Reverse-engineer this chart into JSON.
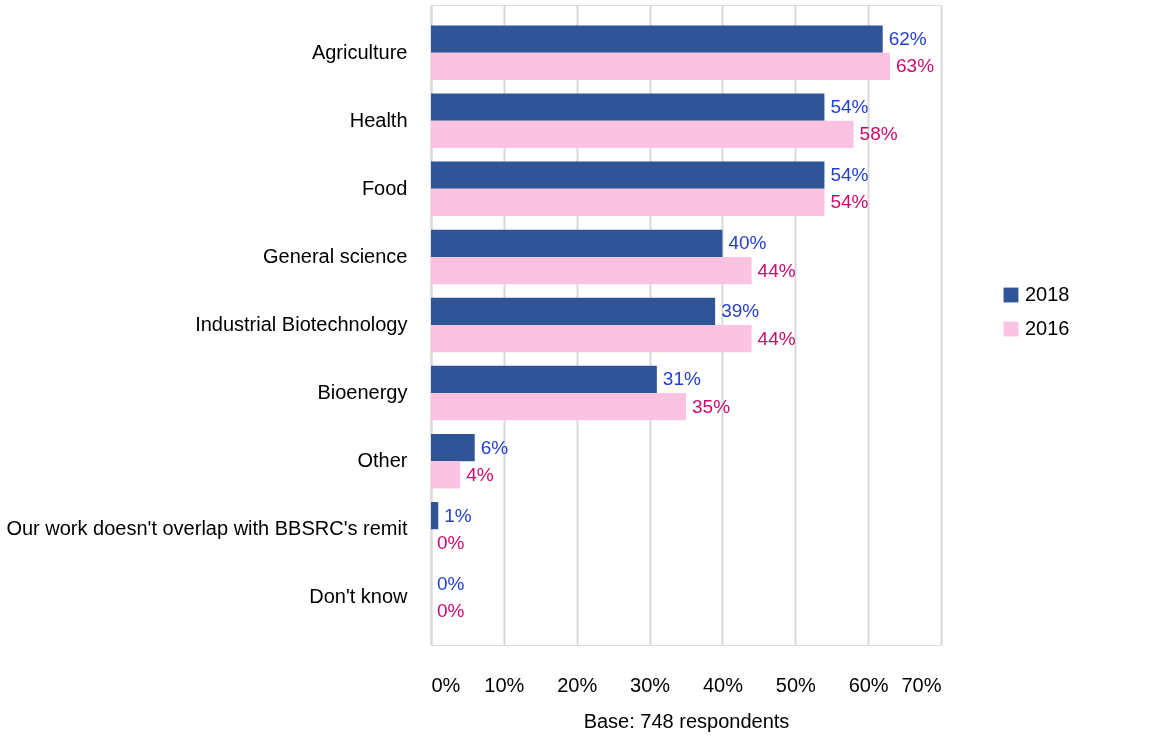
{
  "chart_data": {
    "type": "bar",
    "orientation": "horizontal",
    "xlabel": "Base: 748 respondents",
    "categories": [
      "Agriculture",
      "Health",
      "Food",
      "General science",
      "Industrial Biotechnology",
      "Bioenergy",
      "Other",
      "Our work doesn't overlap with BBSRC's remit",
      "Don't know"
    ],
    "series": [
      {
        "name": "2018",
        "color": "#2f5597",
        "values": [
          62,
          54,
          54,
          40,
          39,
          31,
          6,
          1,
          0
        ],
        "value_labels": [
          "62%",
          "54%",
          "54%",
          "40%",
          "39%",
          "31%",
          "6%",
          "1%",
          "0%"
        ]
      },
      {
        "name": "2016",
        "color": "#fcc2e1",
        "values": [
          63,
          58,
          54,
          44,
          44,
          35,
          4,
          0,
          0
        ],
        "value_labels": [
          "63%",
          "58%",
          "54%",
          "44%",
          "44%",
          "35%",
          "4%",
          "0%",
          "0%"
        ]
      }
    ],
    "xlim": [
      0,
      70
    ],
    "xticks": [
      {
        "value": 0,
        "label": "0%"
      },
      {
        "value": 10,
        "label": "10%"
      },
      {
        "value": 20,
        "label": "20%"
      },
      {
        "value": 30,
        "label": "30%"
      },
      {
        "value": 40,
        "label": "40%"
      },
      {
        "value": 50,
        "label": "50%"
      },
      {
        "value": 60,
        "label": "60%"
      },
      {
        "value": 70,
        "label": "70%"
      }
    ],
    "grid": "x",
    "legend": "right"
  }
}
